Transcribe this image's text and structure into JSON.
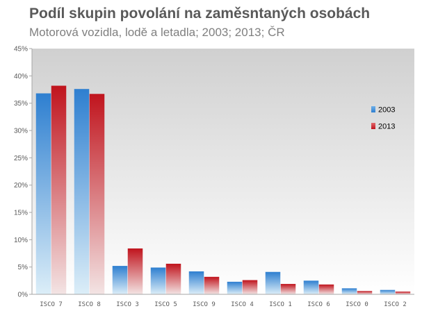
{
  "header": {
    "title": "Podíl skupin povolání na zaměsntaných osobách",
    "subtitle": "Motorová vozidla, lodě a letadla;  2003; 2013; ČR"
  },
  "colors": {
    "series_2003": "#2e7fd0",
    "series_2013": "#c0141d",
    "plot_top": "#d0d0d0",
    "plot_bottom": "#ffffff"
  },
  "chart_data": {
    "type": "bar",
    "title": "Podíl skupin povolání na zaměsntaných osobách",
    "subtitle": "Motorová vozidla, lodě a letadla;  2003; 2013; ČR",
    "xlabel": "",
    "ylabel": "",
    "ylim": [
      0,
      45
    ],
    "yticks": [
      "0%",
      "5%",
      "10%",
      "15%",
      "20%",
      "25%",
      "30%",
      "35%",
      "40%",
      "45%"
    ],
    "grid": false,
    "legend_position": "right",
    "categories": [
      "ISCO 7",
      "ISCO 8",
      "ISCO 3",
      "ISCO 5",
      "ISCO 9",
      "ISCO 4",
      "ISCO 1",
      "ISCO 6",
      "ISCO 0",
      "ISCO 2"
    ],
    "series": [
      {
        "name": "2003",
        "values": [
          36.8,
          37.6,
          5.2,
          4.9,
          4.2,
          2.3,
          4.1,
          2.5,
          1.1,
          0.8
        ]
      },
      {
        "name": "2013",
        "values": [
          38.2,
          36.7,
          8.4,
          5.6,
          3.2,
          2.6,
          1.9,
          1.8,
          0.6,
          0.5
        ]
      }
    ]
  }
}
